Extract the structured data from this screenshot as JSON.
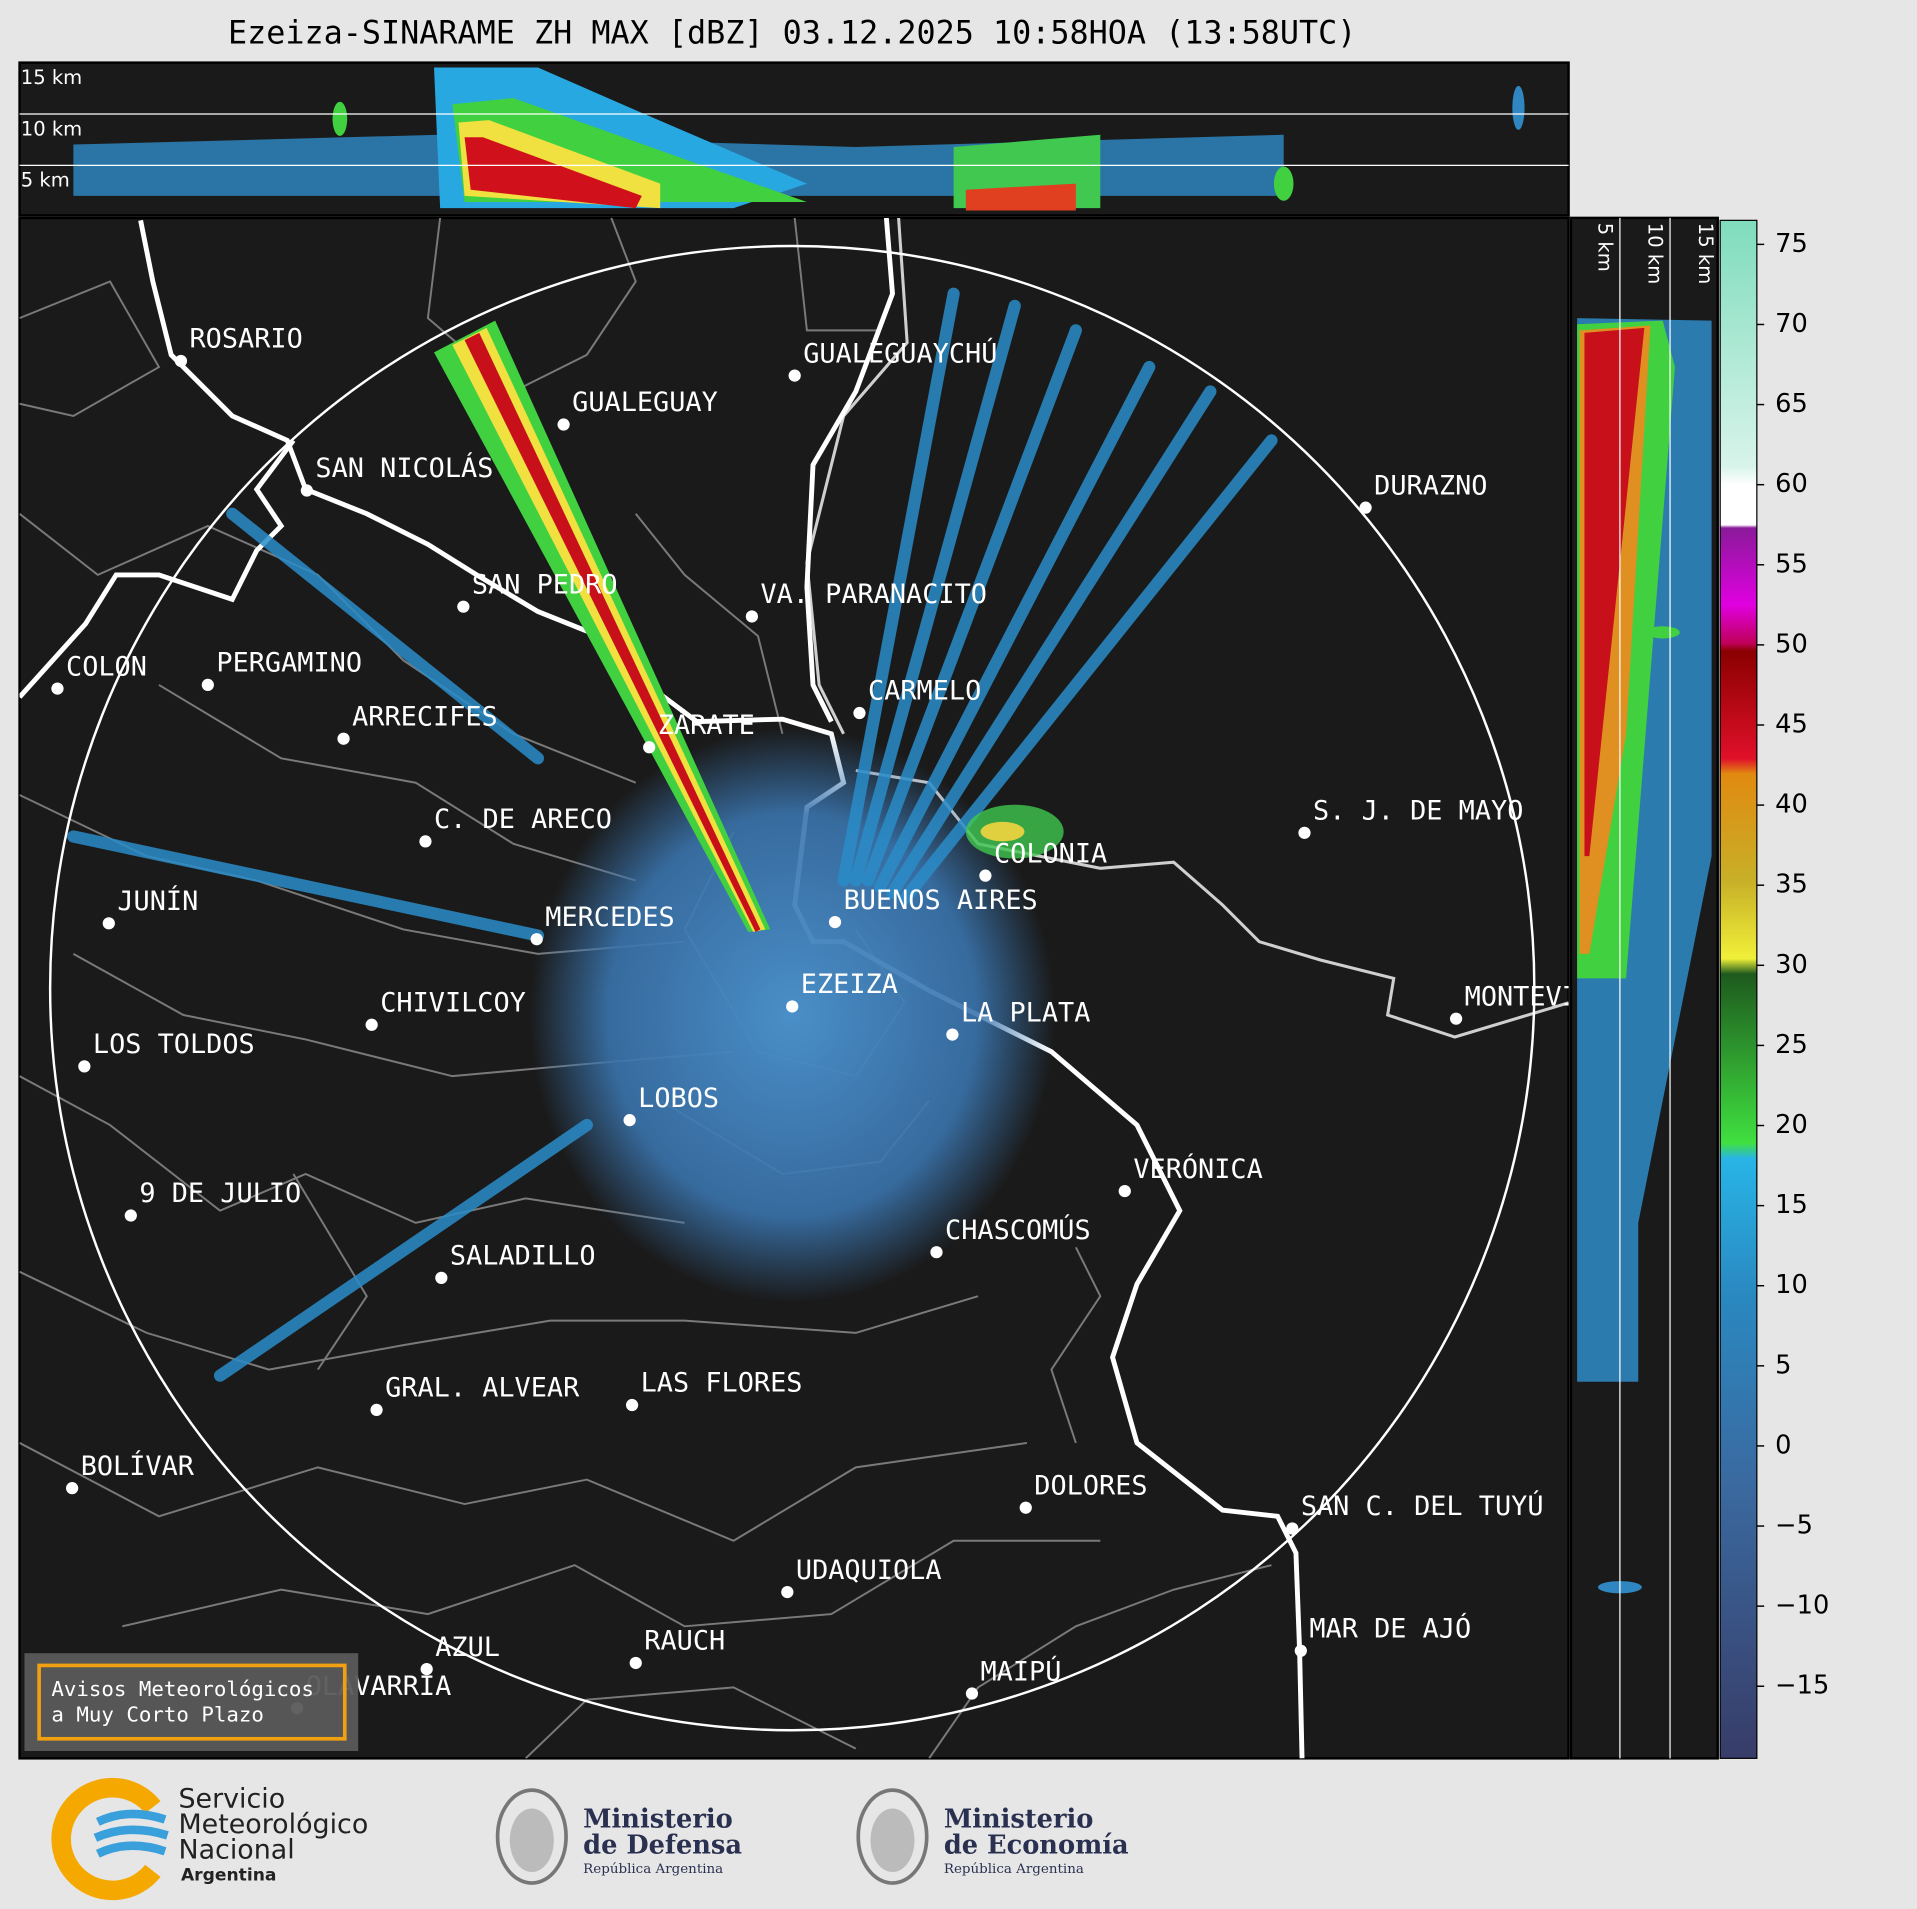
{
  "title": "Ezeiza-SINARAME ZH MAX [dBZ] 03.12.2025 10:58HOA (13:58UTC)",
  "vertical_section_top": {
    "height_labels": [
      "15 km",
      "10 km",
      "5 km"
    ]
  },
  "vertical_section_right": {
    "height_labels": [
      "5 km",
      "10 km",
      "15 km"
    ]
  },
  "colorbar": {
    "lim": [
      -19.5,
      76.5
    ],
    "ticks": [
      75,
      70,
      65,
      60,
      55,
      50,
      45,
      40,
      35,
      30,
      25,
      20,
      15,
      10,
      5,
      0,
      {
        "value": -5,
        "label": "−5"
      },
      {
        "value": -10,
        "label": "−10"
      },
      {
        "value": -15,
        "label": "−15"
      }
    ]
  },
  "cities": [
    "ROSARIO",
    "GUALEGUAYCHÚ",
    "GUALEGUAY",
    "SAN NICOLÁS",
    "DURAZNO",
    "SAN PEDRO",
    "VA. PARANACITO",
    "COLON",
    "PERGAMINO",
    "CARMELO",
    "ARRECIFES",
    "ZÁRATE",
    "C. DE ARECO",
    "S. J. DE MAYO",
    "COLONIA",
    "JUNÍN",
    "BUENOS AIRES",
    "MERCEDES",
    "EZEIZA",
    "CHIVILCOY",
    "MONTEVIDEO",
    "LA PLATA",
    "LOS TOLDOS",
    "LOBOS",
    "VERÓNICA",
    "9 DE JULIO",
    "CHASCOMÚS",
    "SALADILLO",
    "GRAL. ALVEAR",
    "LAS FLORES",
    "BOLÍVAR",
    "DOLORES",
    "SAN C. DEL TUYÚ",
    "UDAQUIOLA",
    "MAR DE AJÓ",
    "RAUCH",
    "AZUL",
    "OLAVARRÍA",
    "MAIPÚ"
  ],
  "warning_box": {
    "lines": [
      "Avisos Meteorológicos",
      "a Muy Corto Plazo"
    ]
  },
  "footer": {
    "smn": [
      "Servicio",
      "Meteorológico",
      "Nacional",
      "Argentina"
    ],
    "defensa": [
      "Ministerio",
      "de Defensa",
      "República Argentina"
    ],
    "economia": [
      "Ministerio",
      "de Economía",
      "República Argentina"
    ]
  }
}
